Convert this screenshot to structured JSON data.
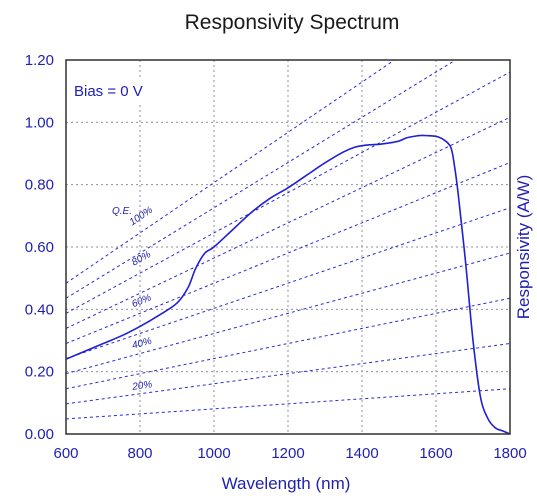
{
  "chart_data": {
    "type": "line",
    "title": "Responsivity Spectrum",
    "xlabel": "Wavelength (nm)",
    "ylabel": "Responsivity  (A/W)",
    "annotation": "Bias = 0 V",
    "qe_label": "Q.E.",
    "xlim": [
      600,
      1800
    ],
    "ylim": [
      0,
      1.2
    ],
    "x_ticks": [
      "600",
      "800",
      "1000",
      "1200",
      "1400",
      "1600",
      "1800"
    ],
    "x_tick_values": [
      600,
      800,
      1000,
      1200,
      1400,
      1600,
      1800
    ],
    "y_ticks": [
      "0.00",
      "0.20",
      "0.40",
      "0.60",
      "0.80",
      "1.00",
      "1.20"
    ],
    "y_tick_values": [
      0,
      0.2,
      0.4,
      0.6,
      0.8,
      1.0,
      1.2
    ],
    "grid": true,
    "series": [
      {
        "x": [
          600,
          650,
          700,
          750,
          800,
          850,
          900,
          930,
          950,
          975,
          1000,
          1050,
          1100,
          1150,
          1200,
          1250,
          1300,
          1350,
          1380,
          1400,
          1420,
          1450,
          1480,
          1500,
          1520,
          1540,
          1560,
          1580,
          1600,
          1620,
          1640,
          1650,
          1660,
          1680,
          1700,
          1720,
          1740,
          1760,
          1780,
          1800
        ],
        "y": [
          0.24,
          0.265,
          0.29,
          0.315,
          0.345,
          0.38,
          0.42,
          0.47,
          0.53,
          0.58,
          0.6,
          0.655,
          0.71,
          0.755,
          0.79,
          0.83,
          0.87,
          0.905,
          0.92,
          0.925,
          0.928,
          0.93,
          0.935,
          0.94,
          0.95,
          0.955,
          0.958,
          0.957,
          0.955,
          0.945,
          0.92,
          0.86,
          0.77,
          0.55,
          0.3,
          0.12,
          0.05,
          0.02,
          0.01,
          0.0
        ]
      }
    ],
    "qe_lines": [
      {
        "qe": 10,
        "label": ""
      },
      {
        "qe": 20,
        "label": "20%"
      },
      {
        "qe": 30,
        "label": ""
      },
      {
        "qe": 40,
        "label": "40%"
      },
      {
        "qe": 50,
        "label": ""
      },
      {
        "qe": 60,
        "label": "60%"
      },
      {
        "qe": 70,
        "label": ""
      },
      {
        "qe": 80,
        "label": "80%"
      },
      {
        "qe": 90,
        "label": ""
      },
      {
        "qe": 100,
        "label": "100%"
      }
    ],
    "colors": {
      "curve": "#1f1fd6",
      "text": "#1f1fb0",
      "grid": "#9090a8",
      "qe_line": "#2a2ad8",
      "frame": "#303030"
    }
  }
}
